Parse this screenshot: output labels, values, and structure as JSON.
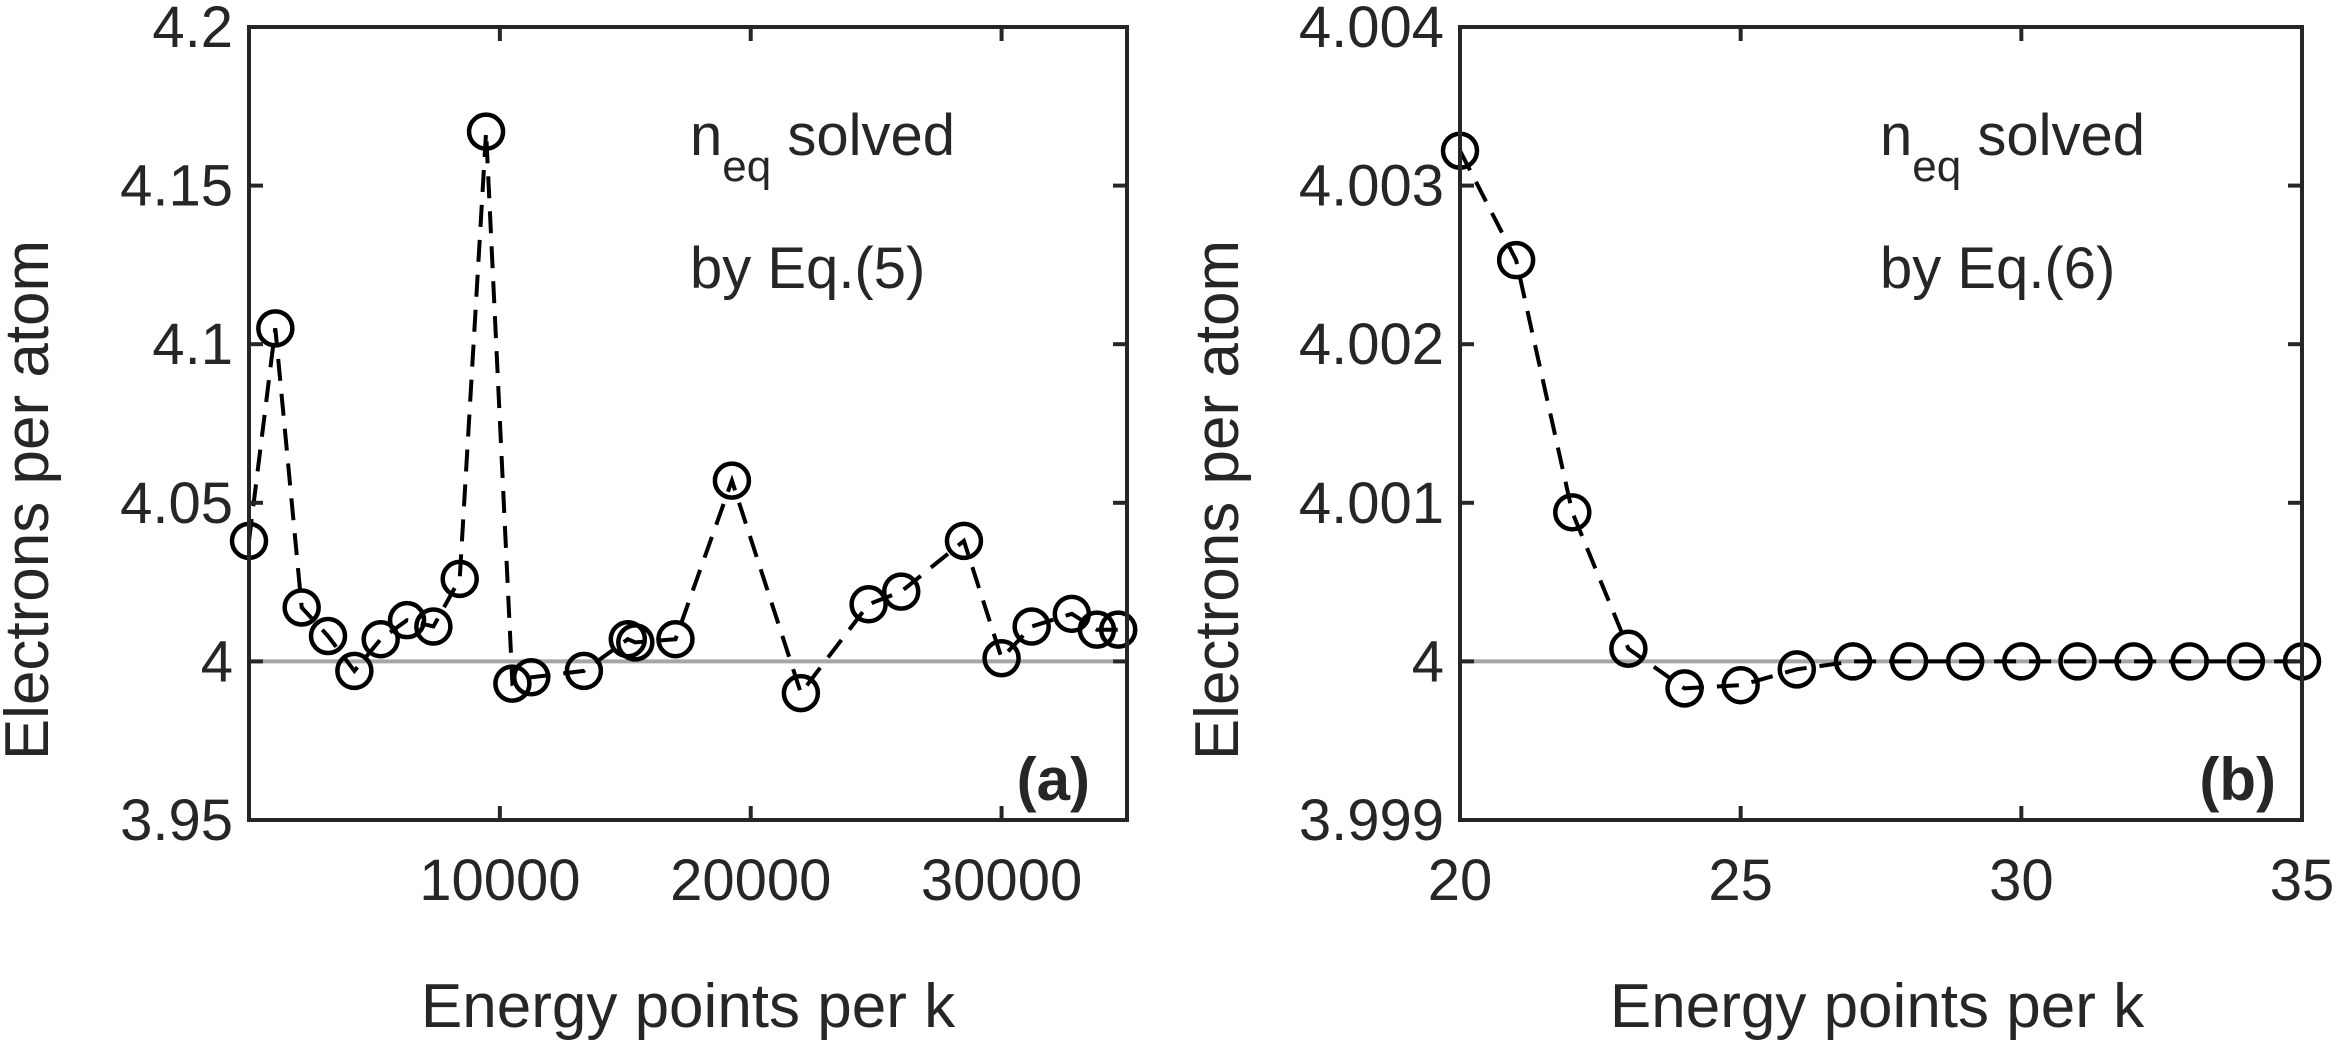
{
  "chart_data": [
    {
      "type": "line",
      "panel_label": "(a)",
      "xlabel": "Energy points per k",
      "ylabel": "Electrons per atom",
      "xlim": [
        0,
        35000
      ],
      "ylim": [
        3.95,
        4.2
      ],
      "xticks": [
        10000,
        20000,
        30000
      ],
      "xtick_labels": [
        "10000",
        "20000",
        "30000"
      ],
      "yticks": [
        3.95,
        4,
        4.05,
        4.1,
        4.15,
        4.2
      ],
      "ytick_labels": [
        "3.95",
        "4",
        "4.05",
        "4.1",
        "4.15",
        "4.2"
      ],
      "reference_line": 4,
      "annotation": {
        "prefix": "n",
        "subscript": "eq",
        "suffix": " solved",
        "line2": "by Eq.(5)"
      },
      "series": [
        {
          "line_style": "dashed",
          "marker": "open-circle",
          "color": "#000000",
          "x": [
            0,
            1050,
            2100,
            3150,
            4200,
            5250,
            6300,
            7350,
            8400,
            9450,
            10500,
            11250,
            13350,
            15100,
            15400,
            17000,
            19250,
            22000,
            24700,
            26000,
            28500,
            30000,
            31200,
            32800,
            33800,
            34650
          ],
          "y": [
            4.038,
            4.105,
            4.017,
            4.008,
            3.997,
            4.007,
            4.013,
            4.011,
            4.026,
            4.167,
            3.993,
            3.995,
            3.997,
            4.007,
            4.006,
            4.007,
            4.057,
            3.99,
            4.018,
            4.022,
            4.038,
            4.001,
            4.011,
            4.015,
            4.01,
            4.01
          ]
        }
      ]
    },
    {
      "type": "line",
      "panel_label": "(b)",
      "xlabel": "Energy points per k",
      "ylabel": "Electrons per atom",
      "xlim": [
        20,
        35
      ],
      "ylim": [
        3.999,
        4.004
      ],
      "xticks": [
        20,
        25,
        30,
        35
      ],
      "xtick_labels": [
        "20",
        "25",
        "30",
        "35"
      ],
      "yticks": [
        3.999,
        4,
        4.001,
        4.002,
        4.003,
        4.004
      ],
      "ytick_labels": [
        "3.999",
        "4",
        "4.001",
        "4.002",
        "4.003",
        "4.004"
      ],
      "reference_line": 4,
      "annotation": {
        "prefix": "n",
        "subscript": "eq",
        "suffix": " solved",
        "line2": "by Eq.(6)"
      },
      "series": [
        {
          "line_style": "dashed",
          "marker": "open-circle",
          "color": "#000000",
          "x": [
            20,
            21,
            22,
            23,
            24,
            25,
            26,
            27,
            28,
            29,
            30,
            31,
            32,
            33,
            34,
            35
          ],
          "y": [
            4.00322,
            4.00253,
            4.00094,
            4.00008,
            3.99983,
            3.99985,
            3.99995,
            4.0,
            4.0,
            4.0,
            4.0,
            4.0,
            4.0,
            4.0,
            4.0,
            4.0
          ]
        }
      ]
    }
  ]
}
